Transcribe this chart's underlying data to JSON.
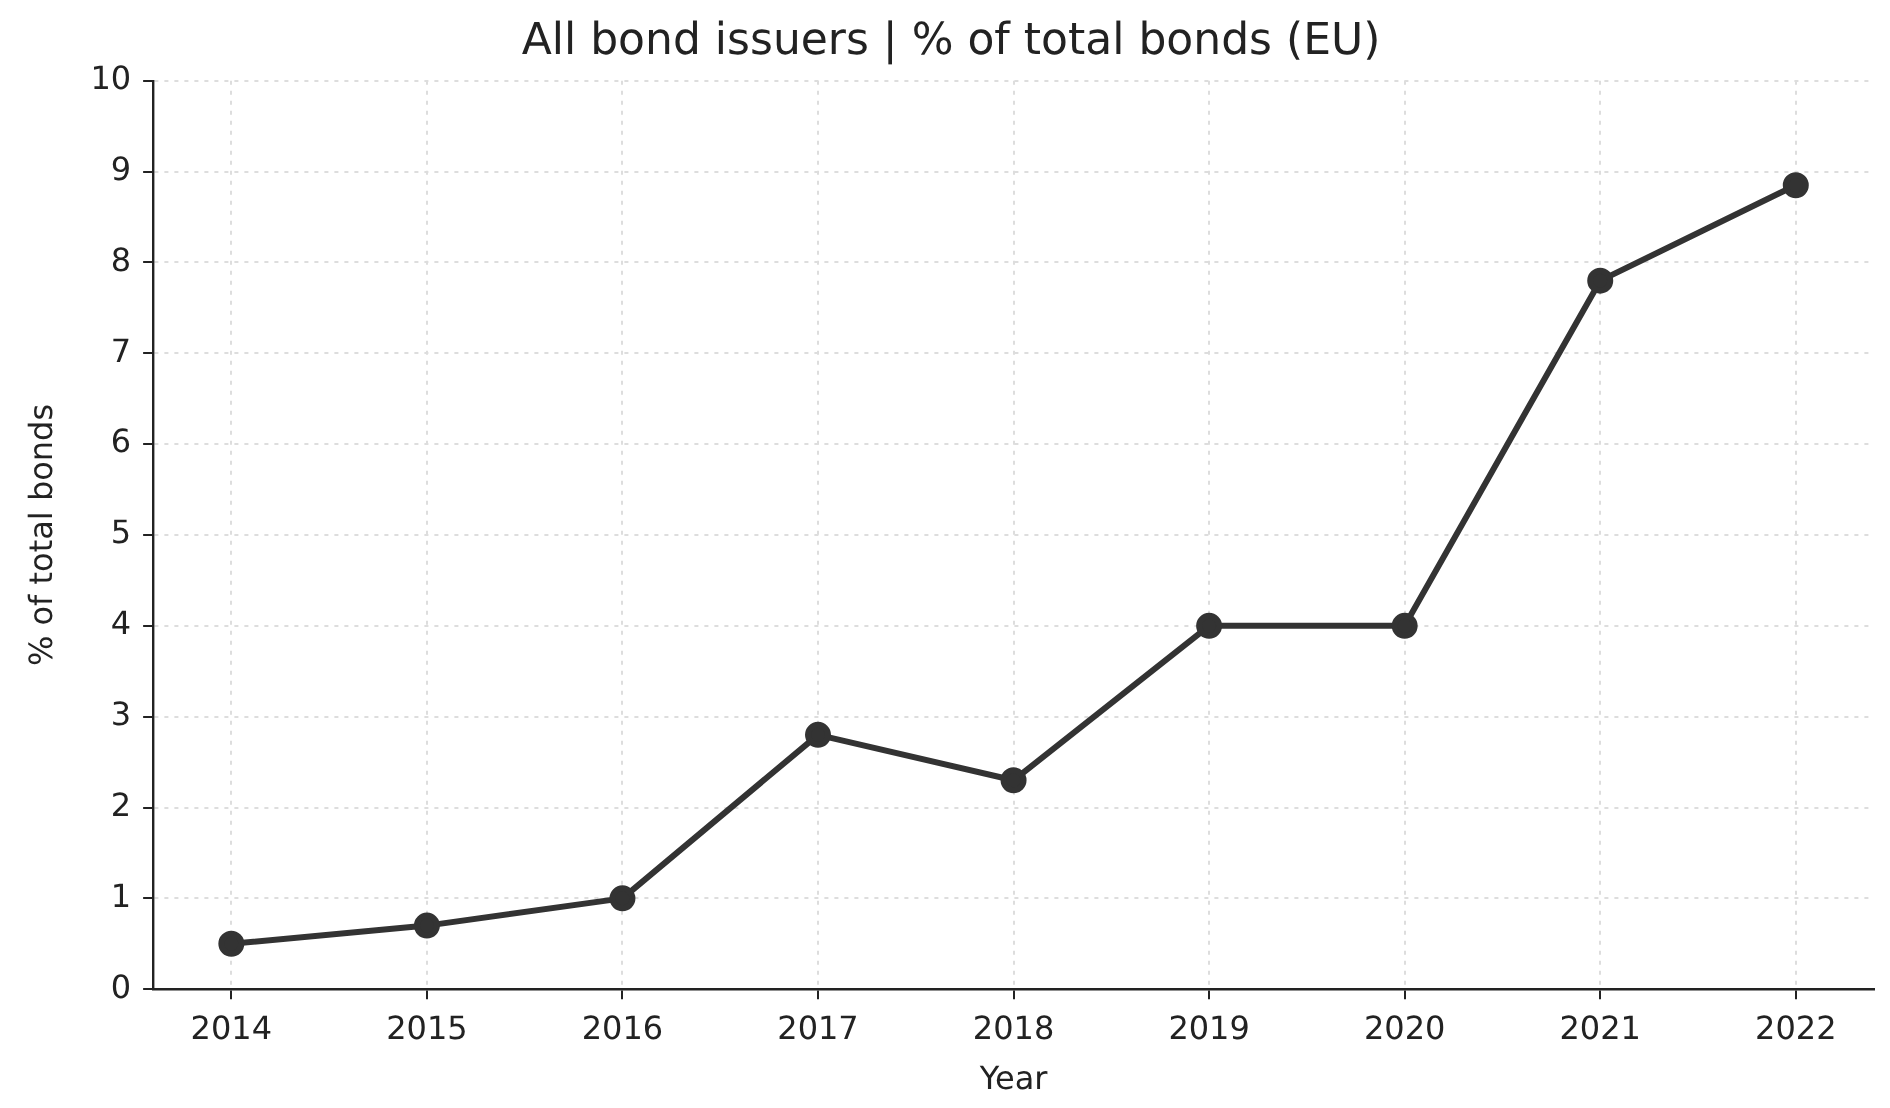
{
  "chart_data": {
    "type": "line",
    "title": "All bond issuers | % of total bonds (EU)",
    "xlabel": "Year",
    "ylabel": "% of total bonds",
    "x": [
      2014,
      2015,
      2016,
      2017,
      2018,
      2019,
      2020,
      2021,
      2022
    ],
    "series": [
      {
        "color": "#333333",
        "values": [
          0.5,
          0.7,
          1.0,
          2.8,
          2.3,
          4.0,
          4.0,
          7.8,
          8.85
        ]
      }
    ],
    "xlim": [
      2013.6,
      2022.4
    ],
    "xticks": [
      2014,
      2015,
      2016,
      2017,
      2018,
      2019,
      2020,
      2021,
      2022
    ],
    "ylim": [
      0,
      10
    ],
    "yticks": [
      0,
      1,
      2,
      3,
      4,
      5,
      6,
      7,
      8,
      9,
      10
    ],
    "grid": true,
    "legend": false,
    "marker": "circle",
    "line_style": "solid"
  }
}
